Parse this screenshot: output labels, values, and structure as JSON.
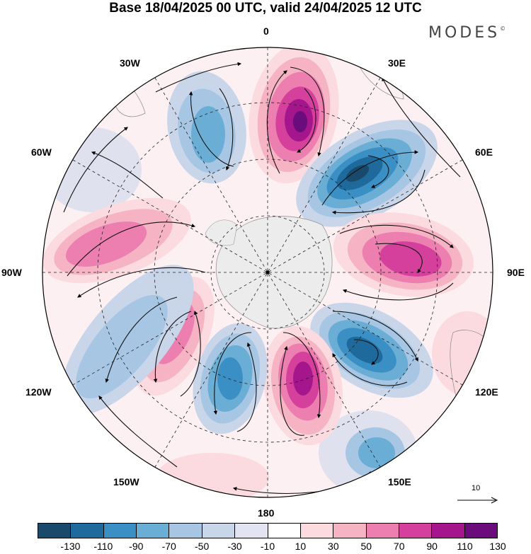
{
  "title": "Base 18/04/2025 00 UTC, valid 24/04/2025 12 UTC",
  "brand": {
    "name": "MODES",
    "mark": "©"
  },
  "longitude_labels": {
    "n0": "0",
    "n30e": "30E",
    "n60e": "60E",
    "n90e": "90E",
    "n120e": "120E",
    "n150e": "150E",
    "n180": "180",
    "n150w": "150W",
    "n120w": "120W",
    "n90w": "90W",
    "n60w": "60W",
    "n30w": "30W"
  },
  "reference_vector": {
    "label": "10",
    "icon": "arrow-right-icon"
  },
  "colorbar": {
    "colors": [
      "#1a4a6b",
      "#1f6a9c",
      "#3a8fc4",
      "#6aaed6",
      "#a7c6e3",
      "#c9d6ea",
      "#e3e4f1",
      "#ffffff",
      "#fbdbdf",
      "#f5b3c3",
      "#ec7fb0",
      "#d4409c",
      "#a5168c",
      "#6a0c7c"
    ],
    "ticks": [
      "-130",
      "-110",
      "-90",
      "-70",
      "-50",
      "-30",
      "-10",
      "10",
      "30",
      "50",
      "70",
      "90",
      "110",
      "130"
    ]
  }
}
